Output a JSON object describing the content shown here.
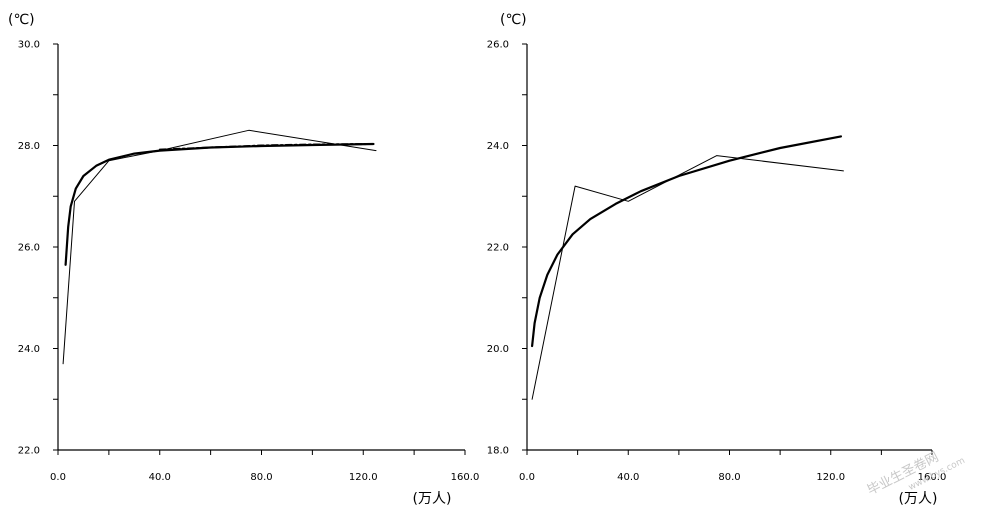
{
  "chart_data": [
    {
      "type": "line",
      "ylabel": "(℃)",
      "xlabel": "(万人)",
      "xlim": [
        0,
        160
      ],
      "ylim": [
        22,
        30
      ],
      "x_ticks": [
        "0.0",
        "40.0",
        "80.0",
        "120.0",
        "160.0"
      ],
      "y_ticks": [
        "22.0",
        "24.0",
        "26.0",
        "28.0",
        "30.0"
      ],
      "grid": false,
      "series": [
        {
          "style": "thin",
          "x": [
            2,
            6.5,
            20,
            40,
            75,
            125
          ],
          "y": [
            23.7,
            26.9,
            27.7,
            27.9,
            28.3,
            27.9
          ]
        },
        {
          "style": "thick",
          "x": [
            3,
            4,
            5,
            7,
            10,
            15,
            20,
            30,
            40,
            60,
            80,
            100,
            124
          ],
          "y": [
            25.65,
            26.4,
            26.8,
            27.15,
            27.4,
            27.6,
            27.72,
            27.84,
            27.9,
            27.96,
            27.99,
            28.01,
            28.03
          ]
        },
        {
          "style": "dashed",
          "x": [
            40,
            60,
            80,
            100,
            124
          ],
          "y": [
            27.92,
            27.96,
            28.0,
            28.02,
            28.03
          ]
        }
      ]
    },
    {
      "type": "line",
      "ylabel": "(℃)",
      "xlabel": "(万人)",
      "xlim": [
        0,
        160
      ],
      "ylim": [
        18,
        26
      ],
      "x_ticks": [
        "0.0",
        "40.0",
        "80.0",
        "120.0",
        "160.0"
      ],
      "y_ticks": [
        "18.0",
        "20.0",
        "22.0",
        "24.0",
        "26.0"
      ],
      "grid": false,
      "series": [
        {
          "style": "thin",
          "x": [
            2,
            19,
            40,
            75,
            125
          ],
          "y": [
            19.0,
            23.2,
            22.9,
            23.8,
            23.5
          ]
        },
        {
          "style": "thick",
          "x": [
            2,
            3,
            5,
            8,
            12,
            18,
            25,
            35,
            45,
            60,
            80,
            100,
            124
          ],
          "y": [
            20.05,
            20.5,
            21.0,
            21.45,
            21.85,
            22.25,
            22.55,
            22.85,
            23.1,
            23.4,
            23.7,
            23.95,
            24.18
          ]
        }
      ]
    }
  ],
  "watermark": {
    "line1": "毕业生圣卷网",
    "line2": "www.bys.com"
  }
}
